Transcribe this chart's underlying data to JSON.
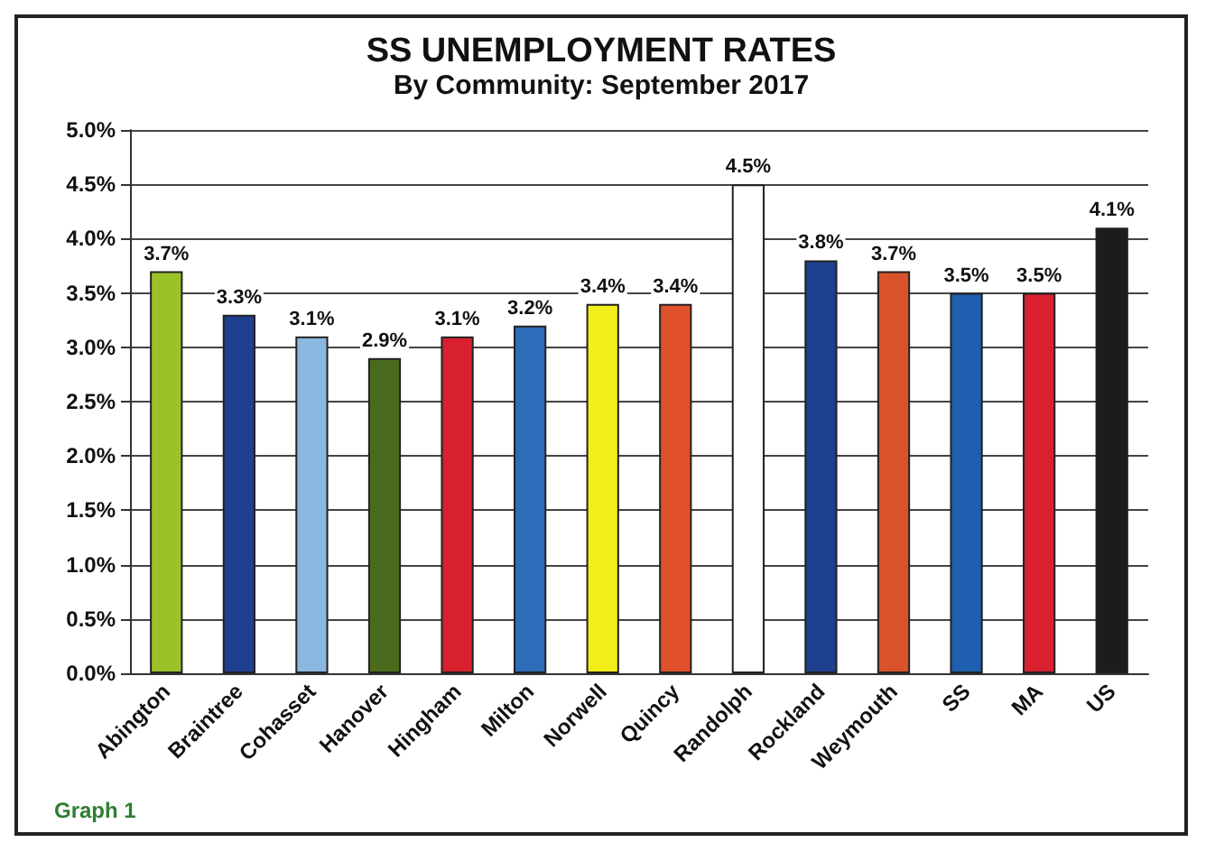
{
  "chart_data": {
    "type": "bar",
    "title": "SS UNEMPLOYMENT RATES",
    "subtitle": "By Community: September 2017",
    "categories": [
      "Abington",
      "Braintree",
      "Cohasset",
      "Hanover",
      "Hingham",
      "Milton",
      "Norwell",
      "Quincy",
      "Randolph",
      "Rockland",
      "Weymouth",
      "SS",
      "MA",
      "US"
    ],
    "values": [
      3.7,
      3.3,
      3.1,
      2.9,
      3.1,
      3.2,
      3.4,
      3.4,
      4.5,
      3.8,
      3.7,
      3.5,
      3.5,
      4.1
    ],
    "value_labels": [
      "3.7%",
      "3.3%",
      "3.1%",
      "2.9%",
      "3.1%",
      "3.2%",
      "3.4%",
      "3.4%",
      "4.5%",
      "3.8%",
      "3.7%",
      "3.5%",
      "3.5%",
      "4.1%"
    ],
    "colors": [
      "#9cc22a",
      "#1f3f8f",
      "#8ab8e0",
      "#4a6b1c",
      "#d8202f",
      "#2d6cb8",
      "#f2ee1a",
      "#e0502a",
      "#ffffff",
      "#1f3f8f",
      "#d9522a",
      "#1e5fb0",
      "#d8202f",
      "#1c1c1c"
    ],
    "ylim": [
      0,
      5
    ],
    "yticks": [
      {
        "value": 0,
        "label": "0.0%"
      },
      {
        "value": 0.5,
        "label": "0.5%"
      },
      {
        "value": 1,
        "label": "1.0%"
      },
      {
        "value": 1.5,
        "label": "1.5%"
      },
      {
        "value": 2,
        "label": "2.0%"
      },
      {
        "value": 2.5,
        "label": "2.5%"
      },
      {
        "value": 3,
        "label": "3.0%"
      },
      {
        "value": 3.5,
        "label": "3.5%"
      },
      {
        "value": 4,
        "label": "4.0%"
      },
      {
        "value": 4.5,
        "label": "4.5%"
      },
      {
        "value": 5,
        "label": "5.0%"
      }
    ],
    "grid": "y",
    "annotations": [
      "Graph 1"
    ]
  }
}
